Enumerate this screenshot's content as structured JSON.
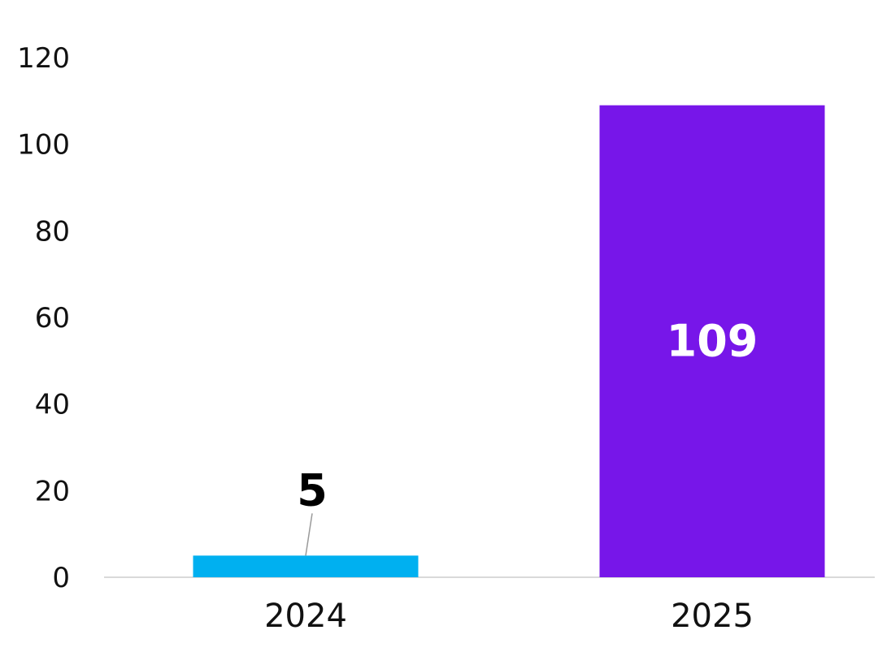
{
  "chart_data": {
    "type": "bar",
    "title": "",
    "xlabel": "",
    "ylabel": "",
    "categories": [
      "2024",
      "2025"
    ],
    "values": [
      5,
      109
    ],
    "ylim": [
      0,
      120
    ],
    "yticks": [
      0,
      20,
      40,
      60,
      80,
      100,
      120
    ],
    "colors": [
      "#00b0f0",
      "#7716e9"
    ],
    "data_labels": [
      "5",
      "109"
    ],
    "label_colors": [
      "#000000",
      "#ffffff"
    ],
    "grid": false,
    "legend": "none"
  }
}
